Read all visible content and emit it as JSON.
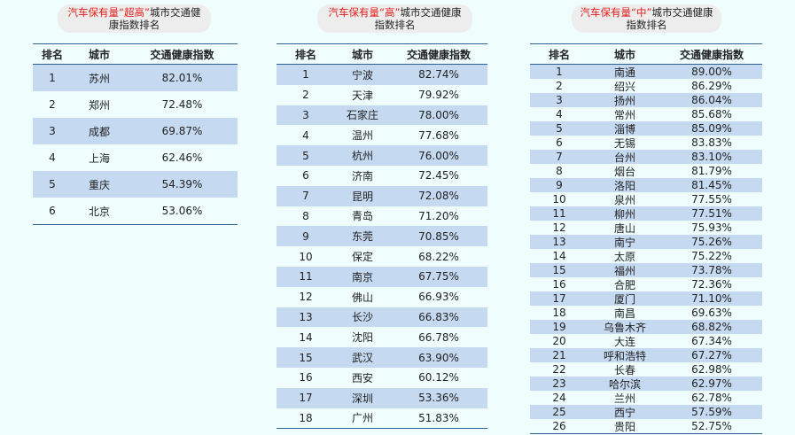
{
  "tables": [
    {
      "title": {
        "highlight": "汽车保有量“超高”",
        "rest": "城市交通健康指数排名"
      },
      "columns": [
        "排名",
        "城市",
        "交通健康指数"
      ],
      "rows": [
        [
          1,
          "苏州",
          "82.01%"
        ],
        [
          2,
          "郑州",
          "72.48%"
        ],
        [
          3,
          "成都",
          "69.87%"
        ],
        [
          4,
          "上海",
          "62.46%"
        ],
        [
          5,
          "重庆",
          "54.39%"
        ],
        [
          6,
          "北京",
          "53.06%"
        ]
      ]
    },
    {
      "title": {
        "highlight": "汽车保有量“高”",
        "rest": "城市交通健康指数排名"
      },
      "columns": [
        "排名",
        "城市",
        "交通健康指数"
      ],
      "rows": [
        [
          1,
          "宁波",
          "82.74%"
        ],
        [
          2,
          "天津",
          "79.92%"
        ],
        [
          3,
          "石家庄",
          "78.00%"
        ],
        [
          4,
          "温州",
          "77.68%"
        ],
        [
          5,
          "杭州",
          "76.00%"
        ],
        [
          6,
          "济南",
          "72.45%"
        ],
        [
          7,
          "昆明",
          "72.08%"
        ],
        [
          8,
          "青岛",
          "71.20%"
        ],
        [
          9,
          "东莞",
          "70.85%"
        ],
        [
          10,
          "保定",
          "68.22%"
        ],
        [
          11,
          "南京",
          "67.75%"
        ],
        [
          12,
          "佛山",
          "66.93%"
        ],
        [
          13,
          "长沙",
          "66.83%"
        ],
        [
          14,
          "沈阳",
          "66.78%"
        ],
        [
          15,
          "武汉",
          "63.90%"
        ],
        [
          16,
          "西安",
          "60.12%"
        ],
        [
          17,
          "深圳",
          "53.36%"
        ],
        [
          18,
          "广州",
          "51.83%"
        ]
      ]
    },
    {
      "title": {
        "highlight": "汽车保有量“中”",
        "rest": "城市交通健康指数排名"
      },
      "columns": [
        "排名",
        "城市",
        "交通健康指数"
      ],
      "rows": [
        [
          1,
          "南通",
          "89.00%"
        ],
        [
          2,
          "绍兴",
          "86.29%"
        ],
        [
          3,
          "扬州",
          "86.04%"
        ],
        [
          4,
          "常州",
          "85.68%"
        ],
        [
          5,
          "淄博",
          "85.09%"
        ],
        [
          6,
          "无锡",
          "83.83%"
        ],
        [
          7,
          "台州",
          "83.10%"
        ],
        [
          8,
          "烟台",
          "81.79%"
        ],
        [
          9,
          "洛阳",
          "81.45%"
        ],
        [
          10,
          "泉州",
          "77.55%"
        ],
        [
          11,
          "柳州",
          "77.51%"
        ],
        [
          12,
          "唐山",
          "75.93%"
        ],
        [
          13,
          "南宁",
          "75.26%"
        ],
        [
          14,
          "太原",
          "75.22%"
        ],
        [
          15,
          "福州",
          "73.78%"
        ],
        [
          16,
          "合肥",
          "72.36%"
        ],
        [
          17,
          "厦门",
          "71.10%"
        ],
        [
          18,
          "南昌",
          "69.63%"
        ],
        [
          19,
          "乌鲁木齐",
          "68.82%"
        ],
        [
          20,
          "大连",
          "67.34%"
        ],
        [
          21,
          "呼和浩特",
          "67.27%"
        ],
        [
          22,
          "长春",
          "62.98%"
        ],
        [
          23,
          "哈尔滨",
          "62.97%"
        ],
        [
          24,
          "兰州",
          "62.78%"
        ],
        [
          25,
          "西宁",
          "57.59%"
        ],
        [
          26,
          "贵阳",
          "52.75%"
        ]
      ]
    }
  ]
}
